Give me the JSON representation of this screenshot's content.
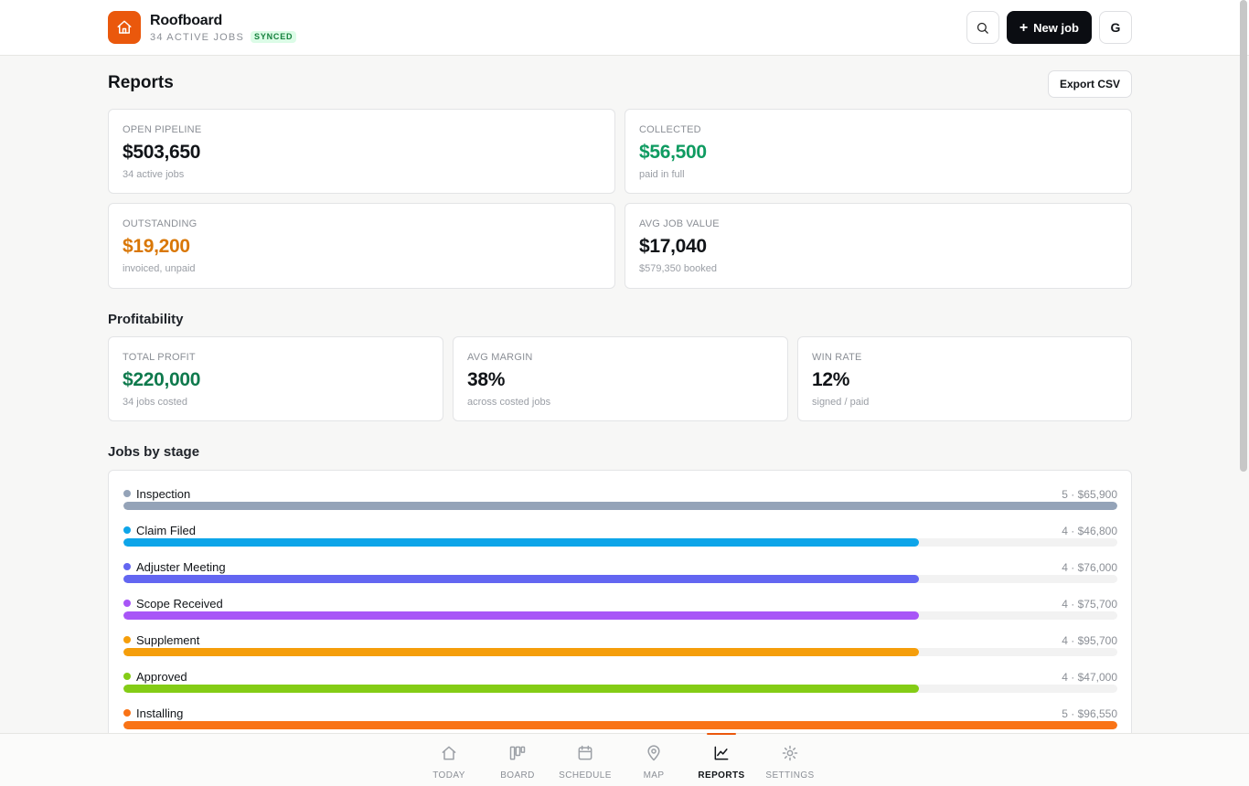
{
  "app": {
    "name": "Roofboard",
    "active_jobs": "34 ACTIVE JOBS",
    "sync_status": "SYNCED",
    "new_job_label": "New job",
    "avatar_initial": "G",
    "accent": "#ea580c"
  },
  "reports": {
    "title": "Reports",
    "export_label": "Export CSV",
    "summary": [
      {
        "label": "OPEN PIPELINE",
        "value": "$503,650",
        "note": "34 active jobs",
        "color": "#111418"
      },
      {
        "label": "COLLECTED",
        "value": "$56,500",
        "note": "paid in full",
        "color": "#0f9b61"
      },
      {
        "label": "OUTSTANDING",
        "value": "$19,200",
        "note": "invoiced, unpaid",
        "color": "#d97706"
      },
      {
        "label": "AVG JOB VALUE",
        "value": "$17,040",
        "note": "$579,350 booked",
        "color": "#111418"
      }
    ],
    "profitability": {
      "title": "Profitability",
      "cards": [
        {
          "label": "TOTAL PROFIT",
          "value": "$220,000",
          "note": "34 jobs costed",
          "color": "#0f7a4d"
        },
        {
          "label": "AVG MARGIN",
          "value": "38%",
          "note": "across costed jobs",
          "color": "#111418"
        },
        {
          "label": "WIN RATE",
          "value": "12%",
          "note": "signed / paid",
          "color": "#111418"
        }
      ]
    },
    "stages": {
      "title": "Jobs by stage",
      "items": [
        {
          "name": "Inspection",
          "meta": "5 · $65,900",
          "count": 5,
          "color": "#94a3b8"
        },
        {
          "name": "Claim Filed",
          "meta": "4 · $46,800",
          "count": 4,
          "color": "#0ea5e9"
        },
        {
          "name": "Adjuster Meeting",
          "meta": "4 · $76,000",
          "count": 4,
          "color": "#6366f1"
        },
        {
          "name": "Scope Received",
          "meta": "4 · $75,700",
          "count": 4,
          "color": "#a855f7"
        },
        {
          "name": "Supplement",
          "meta": "4 · $95,700",
          "count": 4,
          "color": "#f59e0b"
        },
        {
          "name": "Approved",
          "meta": "4 · $47,000",
          "count": 4,
          "color": "#84cc16"
        },
        {
          "name": "Installing",
          "meta": "5 · $96,550",
          "count": 5,
          "color": "#f97316"
        }
      ],
      "max_count": 5
    }
  },
  "nav": {
    "items": [
      {
        "label": "TODAY",
        "icon": "home-icon",
        "active": false
      },
      {
        "label": "BOARD",
        "icon": "board-icon",
        "active": false
      },
      {
        "label": "SCHEDULE",
        "icon": "calendar-icon",
        "active": false
      },
      {
        "label": "MAP",
        "icon": "map-pin-icon",
        "active": false
      },
      {
        "label": "REPORTS",
        "icon": "chart-icon",
        "active": true
      },
      {
        "label": "SETTINGS",
        "icon": "gear-icon",
        "active": false
      }
    ]
  }
}
